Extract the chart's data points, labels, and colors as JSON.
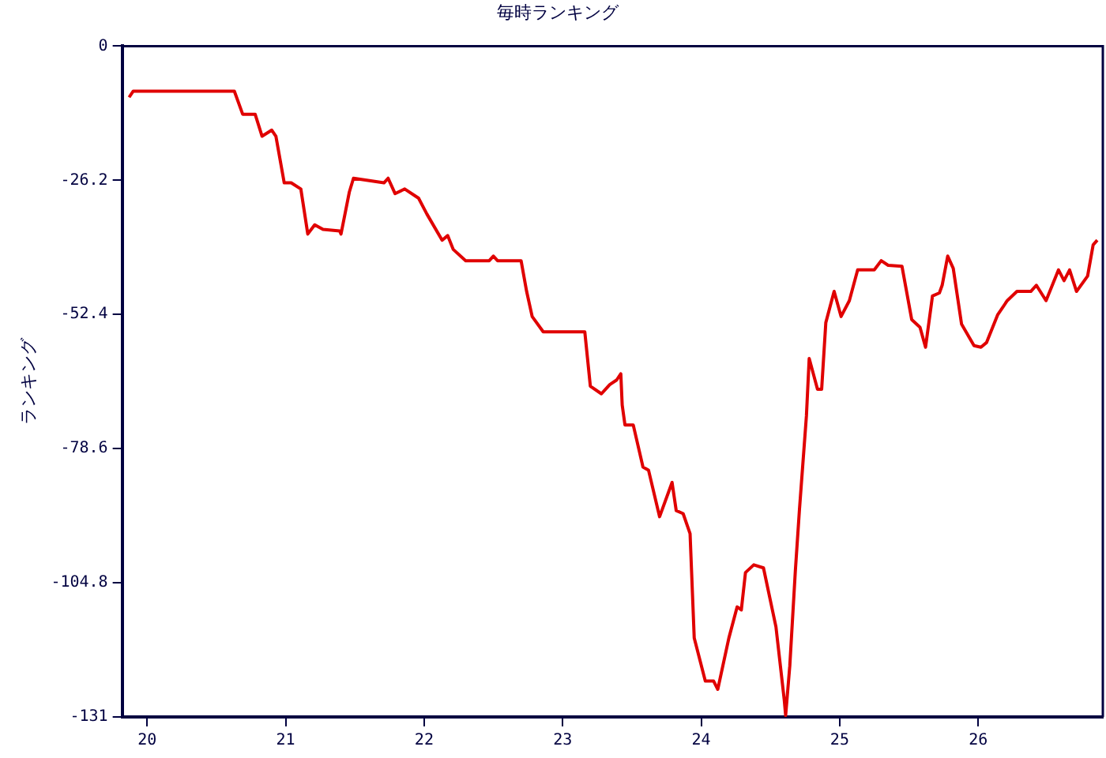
{
  "chart_data": {
    "type": "line",
    "title": "毎時ランキング",
    "ylabel": "ランキング",
    "xlim": [
      19.82,
      26.9
    ],
    "xticks": [
      20,
      21,
      22,
      23,
      24,
      25,
      26
    ],
    "ylim": [
      -131,
      0
    ],
    "yticks": [
      0,
      -26.2,
      -52.4,
      -78.6,
      -104.8,
      -131
    ],
    "grid": false,
    "legend": false,
    "marker": "none",
    "line_style": "solid",
    "series": [
      {
        "color": "#e00000",
        "x": [
          19.87,
          19.9,
          20.63,
          20.69,
          20.78,
          20.83,
          20.9,
          20.93,
          20.99,
          21.04,
          21.11,
          21.16,
          21.21,
          21.27,
          21.39,
          21.4,
          21.46,
          21.49,
          21.71,
          21.74,
          21.79,
          21.86,
          21.96,
          22.02,
          22.13,
          22.17,
          22.21,
          22.3,
          22.47,
          22.5,
          22.53,
          22.7,
          22.74,
          22.78,
          22.86,
          23.16,
          23.2,
          23.28,
          23.34,
          23.39,
          23.42,
          23.43,
          23.45,
          23.51,
          23.58,
          23.62,
          23.7,
          23.79,
          23.82,
          23.87,
          23.92,
          23.95,
          24.03,
          24.09,
          24.12,
          24.2,
          24.26,
          24.29,
          24.32,
          24.38,
          24.45,
          24.54,
          24.6,
          24.61,
          24.64,
          24.68,
          24.71,
          24.76,
          24.78,
          24.84,
          24.87,
          24.9,
          24.96,
          25.01,
          25.07,
          25.13,
          25.25,
          25.3,
          25.35,
          25.45,
          25.52,
          25.58,
          25.62,
          25.67,
          25.72,
          25.74,
          25.78,
          25.82,
          25.88,
          25.97,
          26.02,
          26.06,
          26.14,
          26.21,
          26.28,
          26.38,
          26.42,
          26.49,
          26.58,
          26.62,
          26.66,
          26.71,
          26.79,
          26.83,
          26.86
        ],
        "values": [
          -10,
          -8.8,
          -8.8,
          -13.3,
          -13.3,
          -17.6,
          -16.4,
          -17.6,
          -26.7,
          -26.7,
          -27.9,
          -36.7,
          -34.9,
          -35.8,
          -36.1,
          -36.7,
          -28.5,
          -25.8,
          -26.7,
          -25.8,
          -28.8,
          -27.9,
          -29.7,
          -32.8,
          -37.9,
          -37,
          -39.7,
          -41.9,
          -41.9,
          -41,
          -41.9,
          -41.9,
          -47.9,
          -52.8,
          -55.8,
          -55.8,
          -66.4,
          -67.9,
          -66.1,
          -65.2,
          -64,
          -70.1,
          -74,
          -74,
          -82.2,
          -82.8,
          -91.9,
          -85.2,
          -90.7,
          -91.3,
          -95.2,
          -115.6,
          -124,
          -124,
          -125.6,
          -115.6,
          -109.5,
          -110.1,
          -102.8,
          -101.3,
          -101.9,
          -113.4,
          -127.7,
          -130.7,
          -121,
          -102.5,
          -90.4,
          -72.2,
          -61,
          -67,
          -67,
          -54,
          -47.9,
          -52.8,
          -49.7,
          -43.7,
          -43.7,
          -41.9,
          -42.8,
          -43,
          -53.4,
          -54.9,
          -58.8,
          -48.8,
          -48.2,
          -46.7,
          -41,
          -43.4,
          -54.3,
          -58.5,
          -58.8,
          -57.9,
          -52.5,
          -49.7,
          -47.9,
          -47.9,
          -46.7,
          -49.7,
          -43.7,
          -45.8,
          -43.7,
          -47.9,
          -44.9,
          -38.8,
          -37.9
        ]
      }
    ]
  }
}
